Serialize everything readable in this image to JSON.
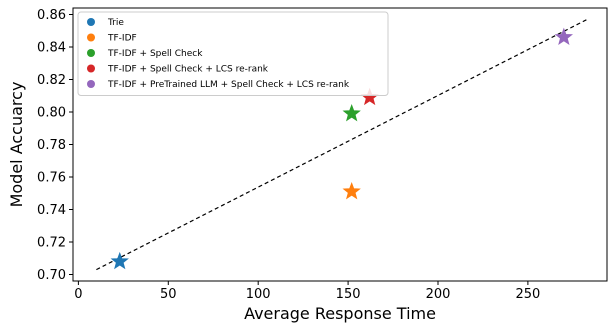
{
  "chart_data": {
    "type": "scatter",
    "title": "",
    "xlabel": "Average Response Time",
    "ylabel": "Model Accuarcy",
    "xlim": [
      -3,
      294
    ],
    "ylim": [
      0.696,
      0.864
    ],
    "x_ticks": [
      0,
      50,
      100,
      150,
      200,
      250
    ],
    "y_ticks": [
      0.7,
      0.72,
      0.74,
      0.76,
      0.78,
      0.8,
      0.82,
      0.84,
      0.86
    ],
    "grid": false,
    "legend_position": "top-left",
    "series": [
      {
        "name": "Trie",
        "color": "#1f77b4",
        "marker": "star",
        "x": 23,
        "y": 0.708
      },
      {
        "name": "TF-IDF",
        "color": "#ff7f0e",
        "marker": "star",
        "x": 152,
        "y": 0.751
      },
      {
        "name": "TF-IDF + Spell Check",
        "color": "#2ca02c",
        "marker": "star",
        "x": 152,
        "y": 0.799
      },
      {
        "name": "TF-IDF + Spell Check + LCS re-rank",
        "color": "#d62728",
        "marker": "star",
        "x": 162,
        "y": 0.809
      },
      {
        "name": "TF-IDF + PreTrained LLM + Spell Check + LCS re-rank",
        "color": "#9467bd",
        "marker": "star",
        "x": 270,
        "y": 0.846
      }
    ],
    "trend_line": {
      "style": "dashed",
      "color": "#000000",
      "x": [
        10,
        283
      ],
      "y": [
        0.703,
        0.857
      ]
    }
  }
}
